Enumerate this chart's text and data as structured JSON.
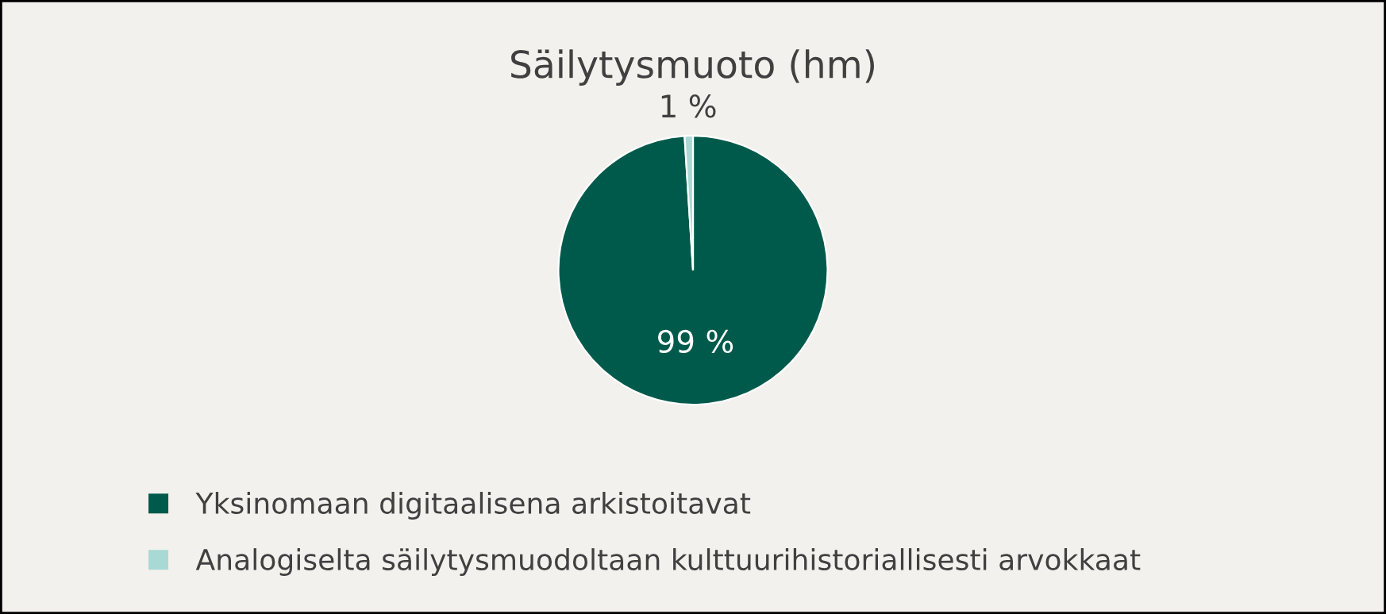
{
  "chart_data": {
    "type": "pie",
    "title": "Säilytysmuoto (hm)",
    "categories": [
      "Yksinomaan digitaalisena arkistoitavat",
      "Analogiselta säilytysmuodoltaan kulttuurihistoriallisesti arvokkaat"
    ],
    "values": [
      99,
      1
    ],
    "colors": [
      "#005a4b",
      "#a9d9d5"
    ],
    "value_labels": [
      "99 %",
      "1 %"
    ],
    "legend": "bottom"
  }
}
